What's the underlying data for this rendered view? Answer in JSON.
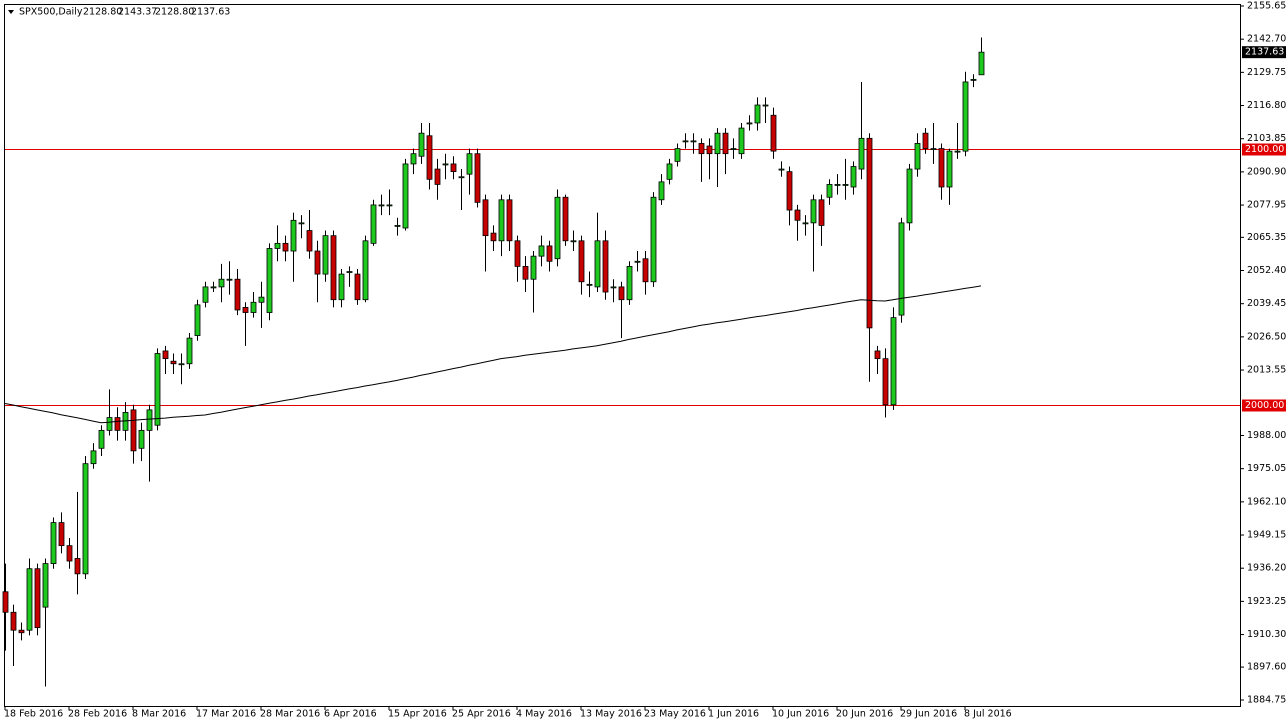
{
  "chart_data": {
    "type": "candlestick",
    "symbol": "SPX500,Daily",
    "ohlc_labels": [
      "2128.80",
      "2143.37",
      "2128.80",
      "2137.63"
    ],
    "categories": [
      "18 Feb 2016",
      null,
      null,
      null,
      null,
      null,
      null,
      null,
      "28 Feb 2016",
      null,
      null,
      null,
      null,
      null,
      null,
      null,
      "8 Mar 2016",
      null,
      null,
      null,
      null,
      null,
      null,
      null,
      "17 Mar 2016",
      null,
      null,
      null,
      null,
      null,
      null,
      null,
      "28 Mar 2016",
      null,
      null,
      null,
      null,
      null,
      null,
      null,
      "6 Apr 2016",
      null,
      null,
      null,
      null,
      null,
      null,
      null,
      "15 Apr 2016",
      null,
      null,
      null,
      null,
      null,
      null,
      null,
      "25 Apr 2016",
      null,
      null,
      null,
      null,
      null,
      null,
      null,
      "4 May 2016",
      null,
      null,
      null,
      null,
      null,
      null,
      null,
      "13 May 2016",
      null,
      null,
      null,
      null,
      null,
      null,
      null,
      "23 May 2016",
      null,
      null,
      null,
      null,
      null,
      null,
      null,
      "1 Jun 2016",
      null,
      null,
      null,
      null,
      null,
      null,
      null,
      "10 Jun 2016",
      null,
      null,
      null,
      null,
      null,
      null,
      null,
      "20 Jun 2016",
      null,
      null,
      null,
      null,
      null,
      null,
      null,
      "29 Jun 2016",
      null,
      null,
      null,
      null,
      null,
      null,
      null,
      "8 Jul 2016",
      null,
      null
    ],
    "open": [
      1927,
      1919,
      1912,
      1912,
      1936,
      1921,
      1938,
      1954,
      1945,
      1940,
      1934,
      1977,
      1983,
      1990,
      1995,
      1990,
      1998,
      1983,
      1990,
      1992,
      2021,
      2017,
      2016,
      2016,
      2027,
      2040,
      2046,
      2046,
      2049,
      2049,
      2038,
      2036,
      2040,
      2036,
      2061,
      2063,
      2060,
      2071,
      2068,
      2060,
      2051,
      2066,
      2041,
      2052,
      2051,
      2041,
      2063,
      2078,
      2078,
      2070,
      2069,
      2094,
      2097,
      2105,
      2092,
      2094,
      2094,
      2089,
      2090,
      2098,
      2080,
      2067,
      2064,
      2080,
      2064,
      2054,
      2049,
      2058,
      2062,
      2057,
      2081,
      2064,
      2064,
      2047,
      2046,
      2064,
      2046,
      2046,
      2041,
      2056,
      2057,
      2048,
      2080,
      2088,
      2095,
      2103,
      2103,
      2102,
      2101,
      2098,
      2106,
      2100,
      2098,
      2110,
      2110,
      2117,
      2113,
      2092,
      2091,
      2076,
      2071,
      2071,
      2080,
      2081,
      2086,
      2086,
      2085,
      2092,
      2104,
      2021,
      2018,
      2000,
      2035,
      2071,
      2092,
      2106,
      2100,
      2100,
      2085,
      2099,
      2099,
      2127,
      2128.8
    ],
    "close": [
      1919,
      1912,
      1911,
      1936,
      1913,
      1938,
      1954,
      1945,
      1939,
      1934,
      1977,
      1982,
      1990,
      1995,
      1990,
      1997,
      1982,
      1990,
      1998,
      2020,
      2018,
      2016,
      2016,
      2026,
      2039,
      2046,
      2046,
      2049,
      2049,
      2037,
      2036,
      2040,
      2042,
      2061,
      2063,
      2060,
      2072,
      2071,
      2060,
      2051,
      2066,
      2041,
      2051,
      2052,
      2041,
      2064,
      2078,
      2078,
      2078,
      2070,
      2094,
      2098,
      2106,
      2088,
      2086,
      2094,
      2091,
      2089,
      2098,
      2079,
      2066,
      2064,
      2080,
      2064,
      2054,
      2049,
      2058,
      2062,
      2056,
      2081,
      2064,
      2064,
      2048,
      2047,
      2064,
      2044,
      2046,
      2041,
      2054,
      2056,
      2048,
      2081,
      2087,
      2094,
      2100,
      2103,
      2103,
      2098,
      2098,
      2106,
      2098,
      2100,
      2108,
      2110,
      2117,
      2117,
      2099,
      2092,
      2076,
      2072,
      2071,
      2080,
      2070,
      2086,
      2086,
      2086,
      2093,
      2104,
      2030,
      2018,
      2000,
      2034,
      2071,
      2092,
      2102,
      2100,
      2100,
      2085,
      2099,
      2099,
      2126,
      2127,
      2137.63
    ],
    "high": [
      1938,
      1922,
      1915,
      1940,
      1938,
      1940,
      1956,
      1958,
      1948,
      1966,
      1980,
      1985,
      1992,
      2006,
      1999,
      2001,
      2000,
      1993,
      2000,
      2022,
      2023,
      2020,
      2020,
      2028,
      2041,
      2048,
      2048,
      2055,
      2056,
      2053,
      2040,
      2044,
      2048,
      2063,
      2070,
      2066,
      2075,
      2074,
      2076,
      2064,
      2068,
      2068,
      2053,
      2054,
      2053,
      2066,
      2080,
      2082,
      2084,
      2073,
      2096,
      2100,
      2110,
      2110,
      2096,
      2098,
      2097,
      2092,
      2100,
      2100,
      2082,
      2070,
      2082,
      2082,
      2066,
      2058,
      2060,
      2066,
      2064,
      2084,
      2082,
      2068,
      2066,
      2052,
      2075,
      2068,
      2049,
      2048,
      2056,
      2060,
      2060,
      2083,
      2090,
      2096,
      2102,
      2106,
      2106,
      2104,
      2104,
      2108,
      2108,
      2104,
      2110,
      2113,
      2120,
      2120,
      2116,
      2095,
      2093,
      2078,
      2074,
      2082,
      2082,
      2088,
      2090,
      2096,
      2095,
      2126,
      2106,
      2023,
      2022,
      2038,
      2073,
      2094,
      2106,
      2108,
      2110,
      2102,
      2100,
      2110,
      2130,
      2129,
      2143.37
    ],
    "low": [
      1904,
      1898,
      1908,
      1910,
      1910,
      1890,
      1936,
      1942,
      1936,
      1926,
      1932,
      1975,
      1980,
      1988,
      1986,
      1986,
      1977,
      1978,
      1970,
      1990,
      2012,
      2012,
      2008,
      2014,
      2025,
      2038,
      2044,
      2040,
      2043,
      2035,
      2023,
      2034,
      2030,
      2033,
      2056,
      2056,
      2048,
      2065,
      2057,
      2040,
      2048,
      2038,
      2038,
      2046,
      2039,
      2040,
      2062,
      2074,
      2074,
      2066,
      2068,
      2090,
      2094,
      2084,
      2080,
      2088,
      2088,
      2076,
      2082,
      2077,
      2052,
      2060,
      2058,
      2060,
      2048,
      2044,
      2036,
      2054,
      2052,
      2054,
      2062,
      2060,
      2043,
      2042,
      2044,
      2041,
      2040,
      2026,
      2039,
      2052,
      2043,
      2046,
      2078,
      2086,
      2093,
      2100,
      2098,
      2087,
      2088,
      2085,
      2090,
      2096,
      2096,
      2107,
      2107,
      2110,
      2096,
      2089,
      2070,
      2064,
      2066,
      2052,
      2062,
      2078,
      2082,
      2080,
      2082,
      2088,
      2009,
      2012,
      1995,
      1998,
      2032,
      2068,
      2089,
      2098,
      2094,
      2080,
      2078,
      2096,
      2097,
      2124,
      2128.8
    ],
    "ma": [
      2000.5,
      1999.9,
      1999.2,
      1998.6,
      1998.0,
      1997.4,
      1996.8,
      1996.1,
      1995.5,
      1994.9,
      1994.3,
      1993.6,
      1993.0,
      1993.2,
      1993.5,
      1993.7,
      1993.9,
      1994.2,
      1994.4,
      1994.6,
      1994.8,
      1995.1,
      1995.3,
      1995.5,
      1995.8,
      1996.0,
      1996.6,
      1997.1,
      1997.7,
      1998.3,
      1998.9,
      1999.4,
      2000.0,
      2000.6,
      2001.1,
      2001.7,
      2002.2,
      2002.8,
      2003.4,
      2003.9,
      2004.5,
      2005.0,
      2005.6,
      2006.2,
      2006.7,
      2007.3,
      2007.8,
      2008.4,
      2008.9,
      2009.5,
      2010.2,
      2010.8,
      2011.5,
      2012.1,
      2012.8,
      2013.4,
      2014.1,
      2014.7,
      2015.4,
      2016.0,
      2016.7,
      2017.3,
      2018.0,
      2018.4,
      2018.8,
      2019.3,
      2019.7,
      2020.1,
      2020.5,
      2020.9,
      2021.3,
      2021.8,
      2022.2,
      2022.6,
      2023.0,
      2023.6,
      2024.2,
      2024.8,
      2025.5,
      2026.1,
      2026.7,
      2027.3,
      2027.9,
      2028.5,
      2029.2,
      2029.8,
      2030.4,
      2031.0,
      2031.5,
      2032.0,
      2032.4,
      2032.9,
      2033.4,
      2033.9,
      2034.4,
      2034.8,
      2035.3,
      2035.8,
      2036.3,
      2036.8,
      2037.4,
      2037.9,
      2038.4,
      2038.9,
      2039.4,
      2040.0,
      2040.5,
      2041.0,
      2040.8,
      2040.6,
      2040.5,
      2041.0,
      2041.5,
      2042.0,
      2042.4,
      2042.9,
      2043.4,
      2043.9,
      2044.4,
      2044.9,
      2045.4,
      2045.9,
      2046.4
    ],
    "up_color": "#1fc81f",
    "down_color": "#c80000",
    "ma_color": "#000000",
    "line_color": "#e00000",
    "hlines": [
      {
        "value": 2100,
        "label": "2100.00"
      },
      {
        "value": 2000,
        "label": "2000.00"
      }
    ],
    "ylim": [
      1884.75,
      2155.65
    ],
    "yticks": [
      {
        "value": 2155.65,
        "label": "2155.65"
      },
      {
        "value": 2142.7,
        "label": "2142.70"
      },
      {
        "value": 2129.75,
        "label": "2129.75"
      },
      {
        "value": 2116.8,
        "label": "2116.80"
      },
      {
        "value": 2103.85,
        "label": "2103.85"
      },
      {
        "value": 2090.9,
        "label": "2090.90"
      },
      {
        "value": 2077.95,
        "label": "2077.95"
      },
      {
        "value": 2065.35,
        "label": "2065.35"
      },
      {
        "value": 2052.4,
        "label": "2052.40"
      },
      {
        "value": 2039.45,
        "label": "2039.45"
      },
      {
        "value": 2026.5,
        "label": "2026.50"
      },
      {
        "value": 2013.55,
        "label": "2013.55"
      },
      {
        "value": 1988,
        "label": "1988.00"
      },
      {
        "value": 1975.05,
        "label": "1975.05"
      },
      {
        "value": 1962.1,
        "label": "1962.10"
      },
      {
        "value": 1949.15,
        "label": "1949.15"
      },
      {
        "value": 1936.2,
        "label": "1936.20"
      },
      {
        "value": 1923.25,
        "label": "1923.25"
      },
      {
        "value": 1910.3,
        "label": "1910.30"
      },
      {
        "value": 1897.6,
        "label": "1897.60"
      },
      {
        "value": 1884.75,
        "label": "1884.75"
      }
    ]
  }
}
